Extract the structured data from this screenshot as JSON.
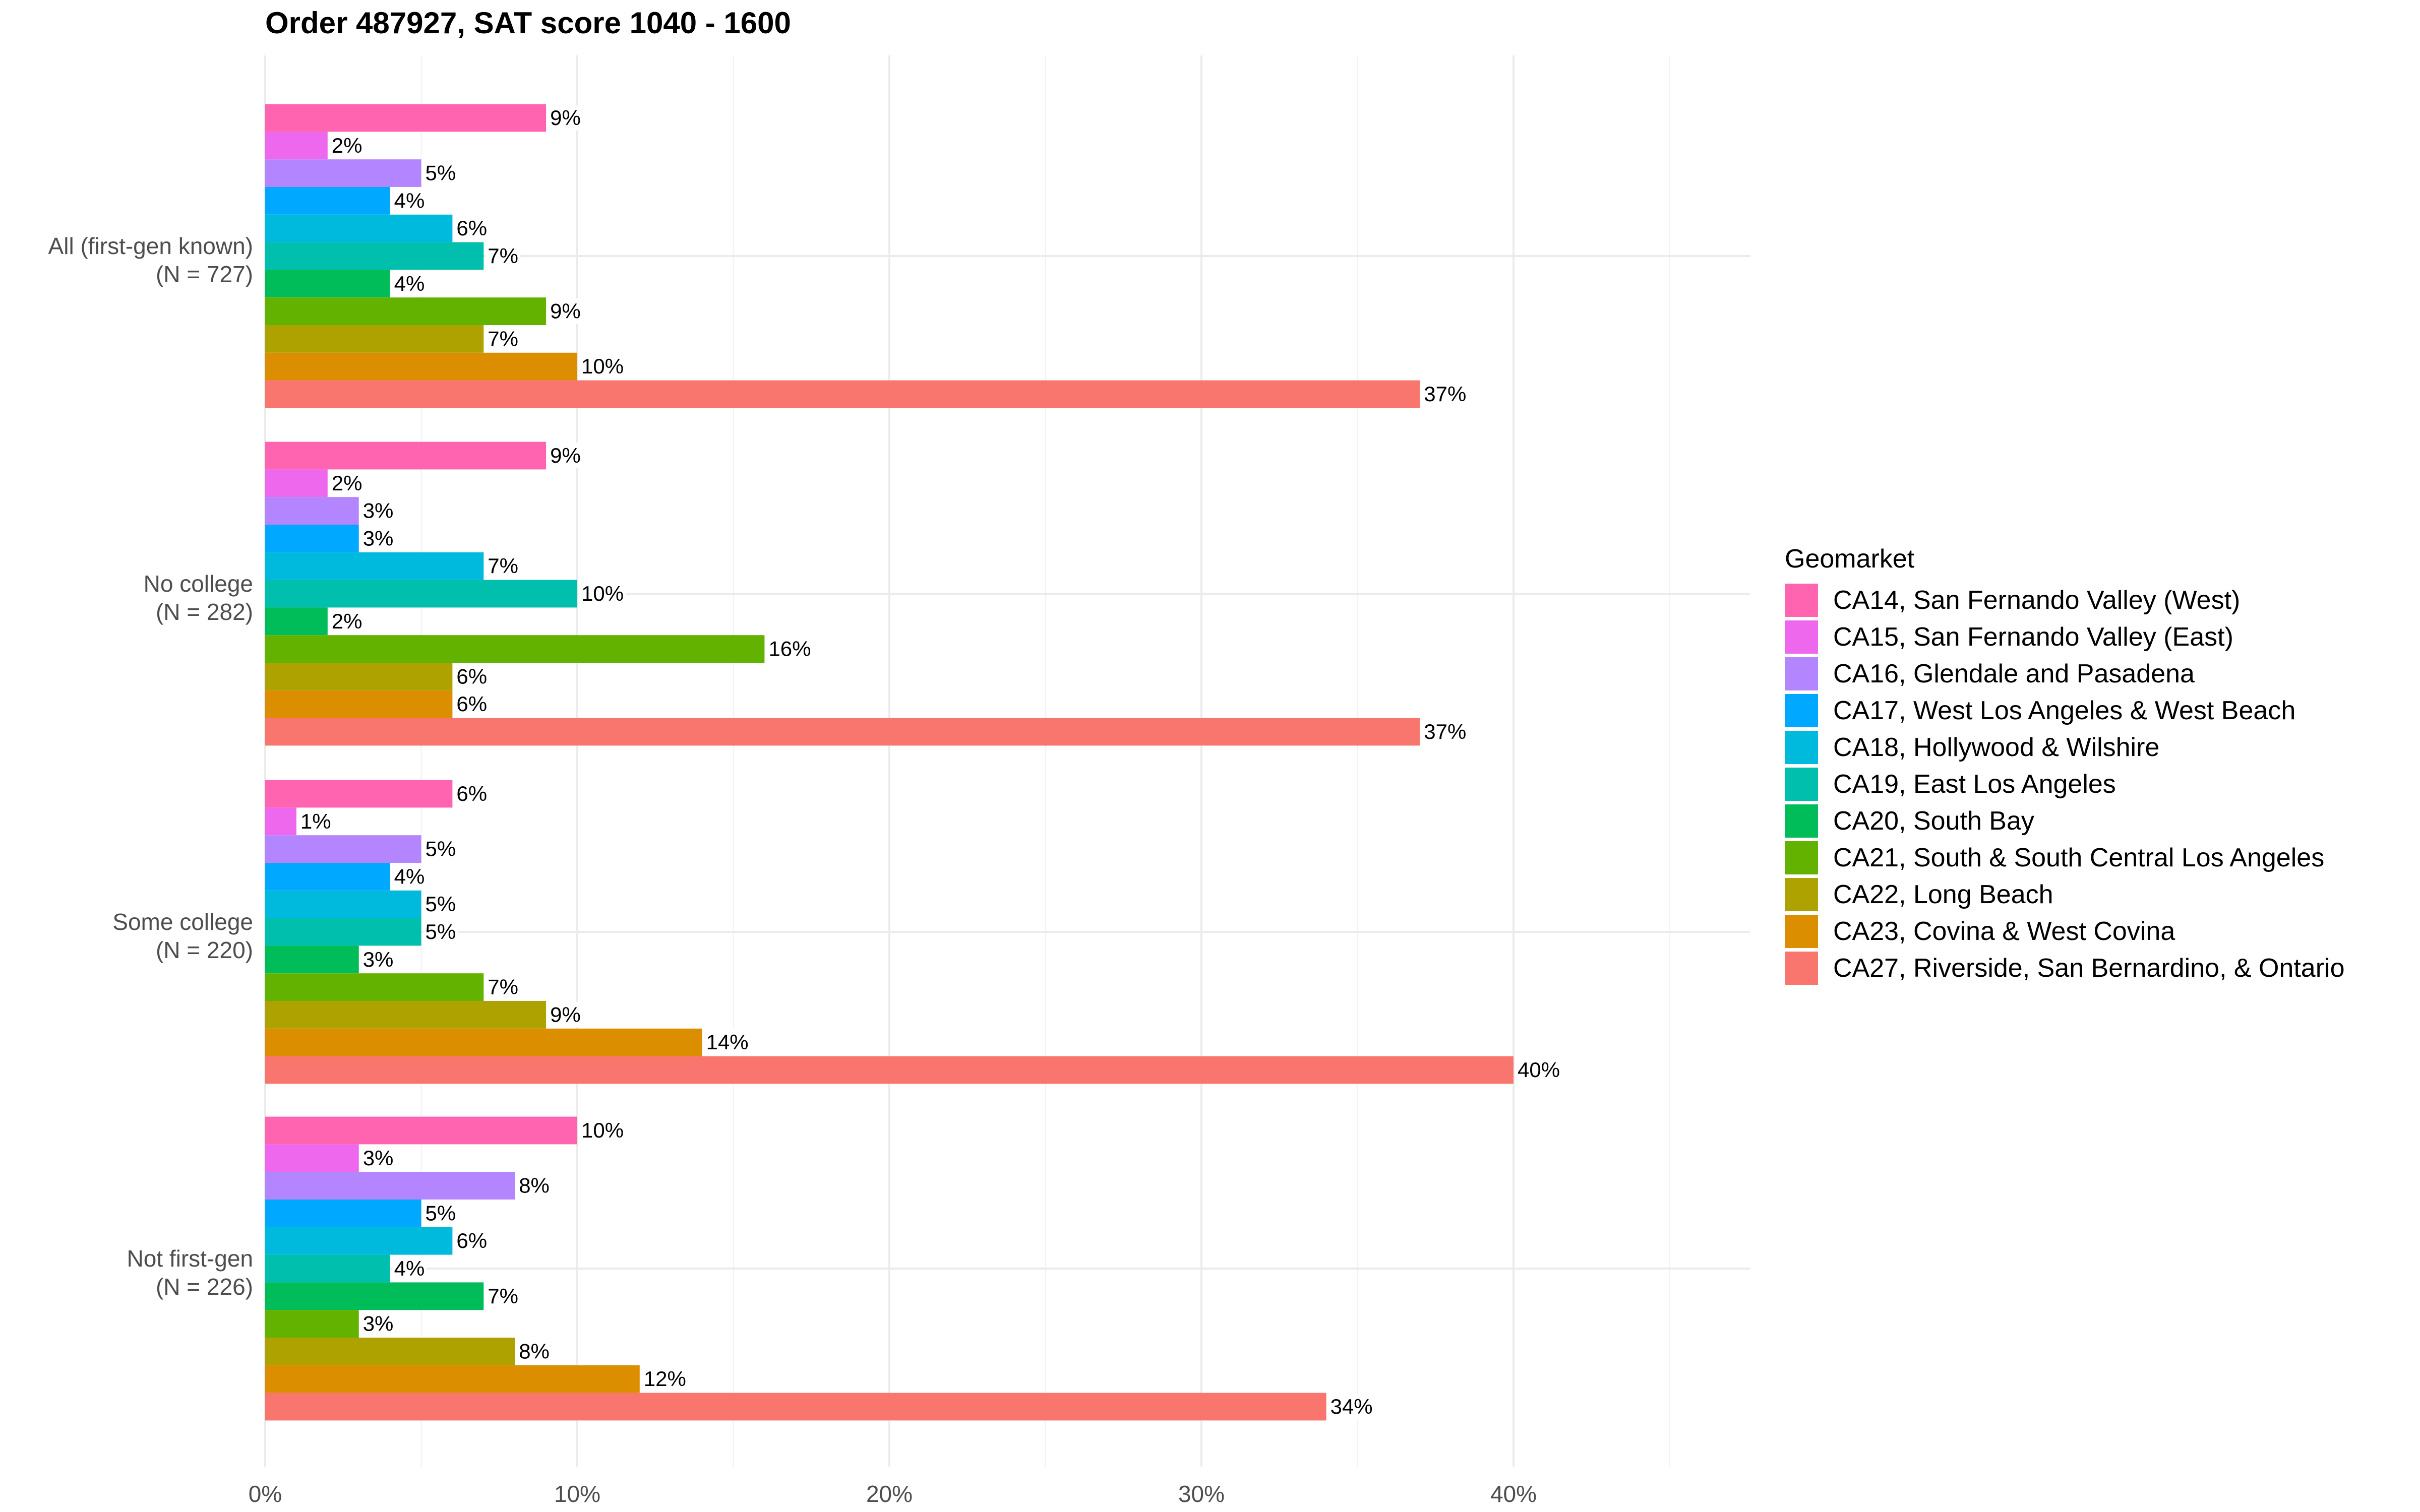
{
  "chart_data": {
    "type": "bar",
    "orientation": "horizontal",
    "title": "Order 487927, SAT score 1040 - 1600",
    "xlabel": "",
    "ylabel": "",
    "xlim": [
      0,
      47
    ],
    "x_ticks": [
      0,
      10,
      20,
      30,
      40
    ],
    "x_tick_labels": [
      "0%",
      "10%",
      "20%",
      "30%",
      "40%"
    ],
    "grid": true,
    "legend_position": "right",
    "legend_title": "Geomarket",
    "categories": [
      "All (first-gen known)\n(N = 727)",
      "No college\n(N = 282)",
      "Some college\n(N = 220)",
      "Not first-gen\n(N = 226)"
    ],
    "category_lines": [
      [
        "All (first-gen known)",
        "(N = 727)"
      ],
      [
        "No college",
        "(N = 282)"
      ],
      [
        "Some college",
        "(N = 220)"
      ],
      [
        "Not first-gen",
        "(N = 226)"
      ]
    ],
    "series": [
      {
        "name": "CA14, San Fernando Valley (West)",
        "color": "#FF64B0",
        "values": [
          9,
          9,
          6,
          10
        ]
      },
      {
        "name": "CA15, San Fernando Valley (East)",
        "color": "#ED68ED",
        "values": [
          2,
          2,
          1,
          3
        ]
      },
      {
        "name": "CA16, Glendale and Pasadena",
        "color": "#B385FF",
        "values": [
          5,
          3,
          5,
          8
        ]
      },
      {
        "name": "CA17, West Los Angeles & West Beach",
        "color": "#00A9FF",
        "values": [
          4,
          3,
          4,
          5
        ]
      },
      {
        "name": "CA18, Hollywood & Wilshire",
        "color": "#00BADE",
        "values": [
          6,
          7,
          5,
          6
        ]
      },
      {
        "name": "CA19, East Los Angeles",
        "color": "#00BFAD",
        "values": [
          7,
          10,
          5,
          4
        ]
      },
      {
        "name": "CA20, South Bay",
        "color": "#00BC59",
        "values": [
          4,
          2,
          3,
          7
        ]
      },
      {
        "name": "CA21, South & South Central Los Angeles",
        "color": "#64B200",
        "values": [
          9,
          16,
          7,
          3
        ]
      },
      {
        "name": "CA22, Long Beach",
        "color": "#AEA200",
        "values": [
          7,
          6,
          9,
          8
        ]
      },
      {
        "name": "CA23, Covina & West Covina",
        "color": "#DB8E00",
        "values": [
          10,
          6,
          14,
          12
        ]
      },
      {
        "name": "CA27, Riverside, San Bernardino, & Ontario",
        "color": "#F8766D",
        "values": [
          37,
          37,
          40,
          34
        ]
      }
    ],
    "value_suffix": "%"
  }
}
